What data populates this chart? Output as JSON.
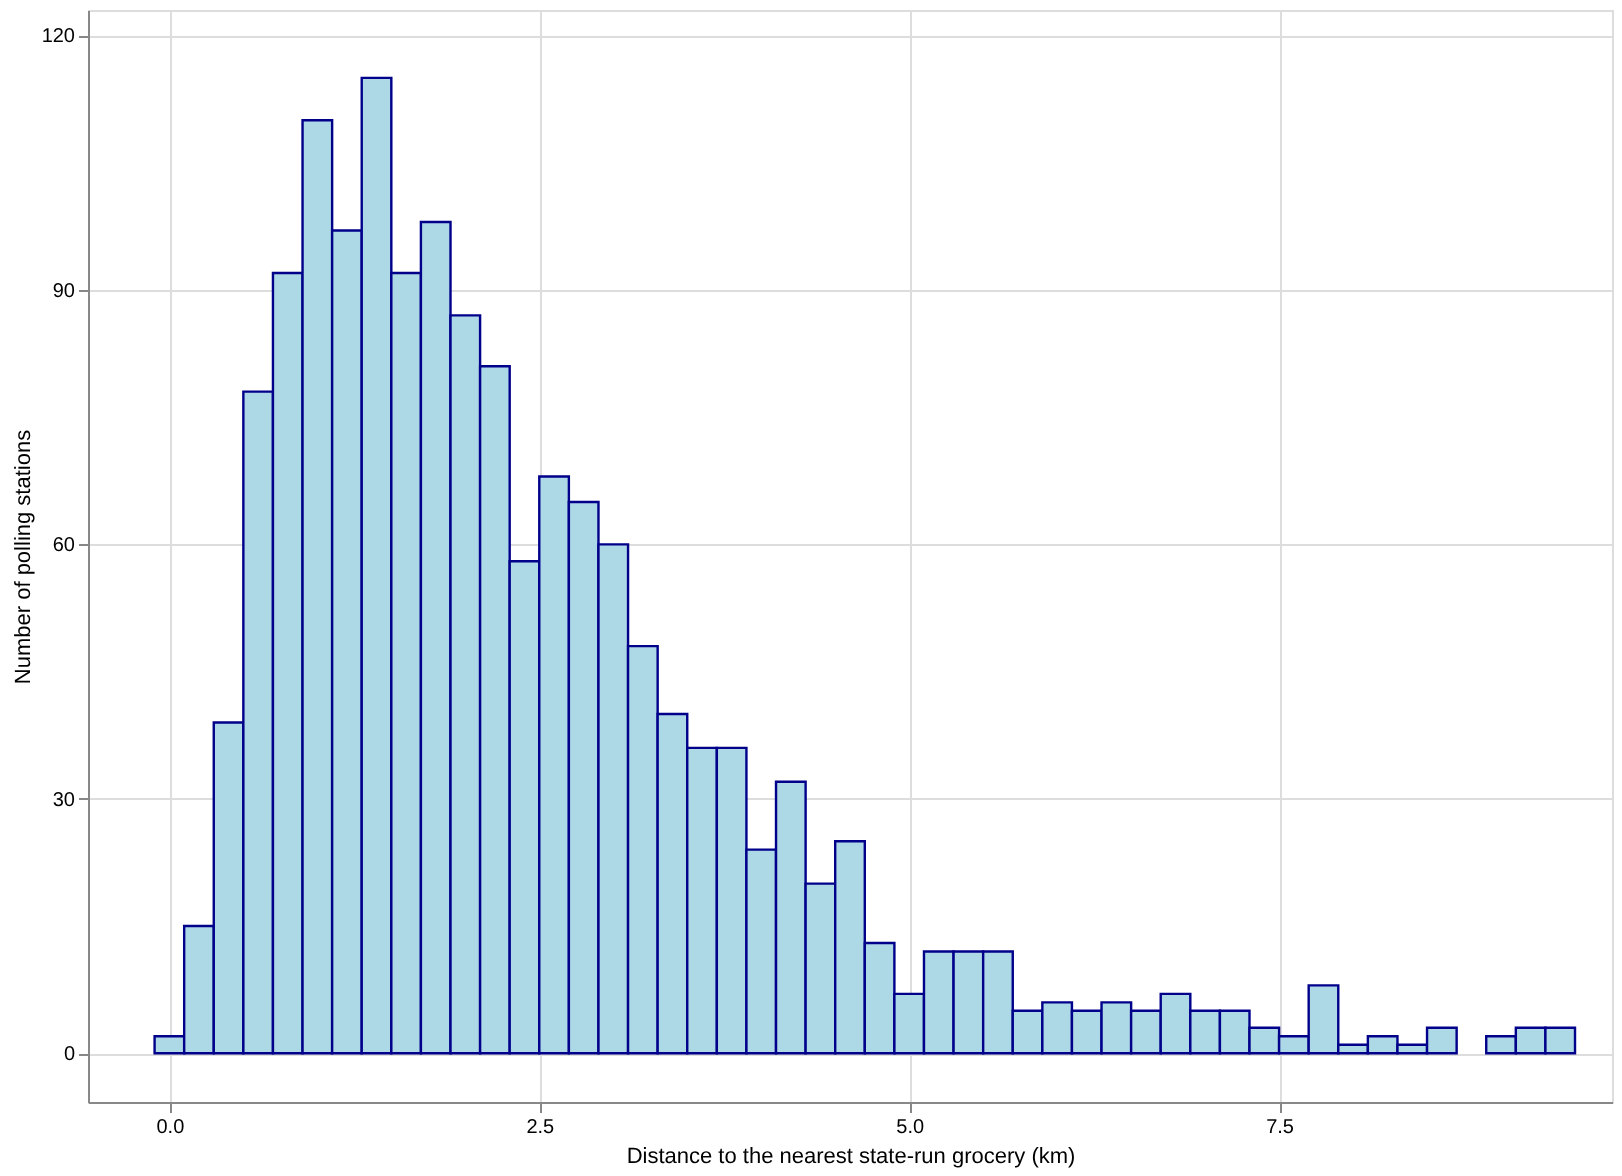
{
  "chart_data": {
    "type": "histogram",
    "xlabel": "Distance to the nearest state-run grocery (km)",
    "ylabel": "Number of polling stations",
    "bins": [
      -0.1,
      0.1,
      0.3,
      0.5,
      0.7,
      0.9,
      1.1,
      1.3,
      1.5,
      1.7,
      1.9,
      2.1,
      2.3,
      2.5,
      2.7,
      2.9,
      3.1,
      3.3,
      3.5,
      3.7,
      3.9,
      4.1,
      4.3,
      4.5,
      4.7,
      4.9,
      5.1,
      5.3,
      5.5,
      5.7,
      5.9,
      6.1,
      6.3,
      6.5,
      6.7,
      6.9,
      7.1,
      7.3,
      7.5,
      7.7,
      7.9,
      8.1,
      8.3,
      8.5,
      8.7,
      8.9,
      9.1,
      9.3,
      9.5
    ],
    "values": [
      2,
      15,
      39,
      78,
      92,
      110,
      97,
      115,
      92,
      98,
      87,
      81,
      58,
      68,
      65,
      60,
      48,
      40,
      36,
      36,
      24,
      32,
      20,
      25,
      13,
      7,
      12,
      12,
      12,
      5,
      6,
      5,
      6,
      5,
      7,
      5,
      5,
      3,
      2,
      8,
      1,
      2,
      1,
      3,
      0,
      2,
      3,
      3
    ],
    "color": "#add8e6",
    "xlim": [
      -0.55,
      9.75
    ],
    "xticks": [
      {
        "value": 0,
        "label": "0.0"
      },
      {
        "value": 2.5,
        "label": "2.5"
      },
      {
        "value": 5,
        "label": "5.0"
      },
      {
        "value": 7.5,
        "label": "7.5"
      }
    ],
    "ylim": [
      -5.75,
      123
    ],
    "yticks": [
      0,
      30,
      60,
      90,
      120
    ],
    "grid": true
  }
}
